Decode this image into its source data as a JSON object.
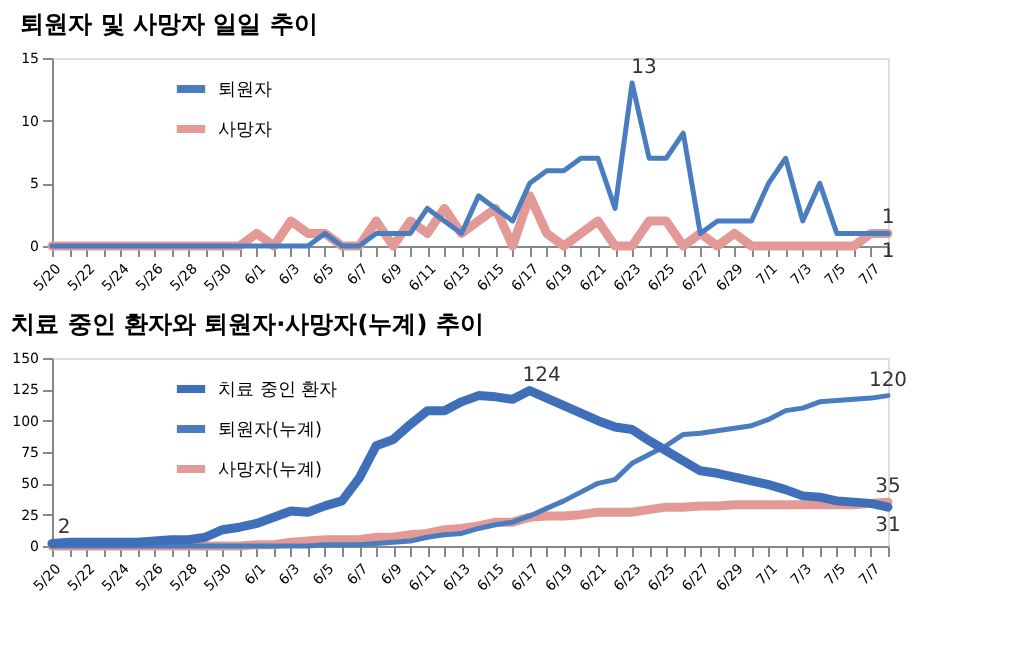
{
  "chart_data": [
    {
      "type": "line",
      "title": "퇴원자 및 사망자 일일 추이",
      "categories": [
        "5/20",
        null,
        "5/22",
        null,
        "5/24",
        null,
        "5/26",
        null,
        "5/28",
        null,
        "5/30",
        null,
        "6/1",
        null,
        "6/3",
        null,
        "6/5",
        null,
        "6/7",
        null,
        "6/9",
        null,
        "6/11",
        null,
        "6/13",
        null,
        "6/15",
        null,
        "6/17",
        null,
        "6/19",
        null,
        "6/21",
        null,
        "6/23",
        null,
        "6/25",
        null,
        "6/27",
        null,
        "6/29",
        null,
        "7/1",
        null,
        "7/3",
        null,
        "7/5",
        null,
        "7/7",
        null
      ],
      "series": [
        {
          "name": "퇴원자",
          "color": "#4a7cc0",
          "values": [
            0,
            0,
            0,
            0,
            0,
            0,
            0,
            0,
            0,
            0,
            0,
            0,
            0,
            0,
            0,
            0,
            1,
            0,
            0,
            1,
            1,
            1,
            3,
            2,
            1,
            4,
            3,
            2,
            5,
            6,
            6,
            7,
            7,
            3,
            13,
            7,
            7,
            9,
            1,
            2,
            2,
            2,
            5,
            7,
            2,
            5,
            1,
            1,
            1,
            1
          ]
        },
        {
          "name": "사망자",
          "color": "#e39a96",
          "values": [
            0,
            0,
            0,
            0,
            0,
            0,
            0,
            0,
            0,
            0,
            0,
            0,
            1,
            0,
            2,
            1,
            1,
            0,
            0,
            2,
            0,
            2,
            1,
            3,
            1,
            2,
            3,
            0,
            4,
            1,
            0,
            1,
            2,
            0,
            0,
            2,
            2,
            0,
            1,
            0,
            1,
            0,
            0,
            0,
            0,
            0,
            0,
            0,
            1,
            1
          ]
        }
      ],
      "ylim": [
        0,
        15
      ],
      "yticks": [
        0,
        5,
        10,
        15
      ],
      "grid": false,
      "legend": "top left",
      "line_style": "solid",
      "marker": "none",
      "annotations": [
        {
          "text": "13",
          "x": "6/23",
          "y": 13
        },
        {
          "text": "1",
          "y": 1
        },
        {
          "text": "1",
          "y": 1
        }
      ]
    },
    {
      "type": "line",
      "title": "치료 중인 환자와 퇴원자·사망자(누계) 추이",
      "categories": [
        "5/20",
        null,
        "5/22",
        null,
        "5/24",
        null,
        "5/26",
        null,
        "5/28",
        null,
        "5/30",
        null,
        "6/1",
        null,
        "6/3",
        null,
        "6/5",
        null,
        "6/7",
        null,
        "6/9",
        null,
        "6/11",
        null,
        "6/13",
        null,
        "6/15",
        null,
        "6/17",
        null,
        "6/19",
        null,
        "6/21",
        null,
        "6/23",
        null,
        "6/25",
        null,
        "6/27",
        null,
        "6/29",
        null,
        "7/1",
        null,
        "7/3",
        null,
        "7/5",
        null,
        "7/7",
        null
      ],
      "series": [
        {
          "name": "치료 중인 환자",
          "color": "#3f6fb8",
          "values": [
            2,
            3,
            3,
            3,
            3,
            3,
            4,
            5,
            5,
            7,
            13,
            15,
            18,
            23,
            28,
            27,
            32,
            36,
            54,
            80,
            85,
            97,
            108,
            108,
            115,
            120,
            119,
            117,
            124,
            118,
            112,
            106,
            100,
            95,
            93,
            84,
            76,
            68,
            60,
            58,
            55,
            52,
            49,
            45,
            40,
            39,
            36,
            35,
            34,
            31
          ]
        },
        {
          "name": "퇴원자(누계)",
          "color": "#4a7cc0",
          "values": [
            0,
            0,
            0,
            0,
            0,
            0,
            0,
            0,
            0,
            0,
            0,
            0,
            0,
            0,
            0,
            0,
            1,
            1,
            1,
            2,
            3,
            4,
            7,
            9,
            10,
            14,
            17,
            19,
            24,
            30,
            36,
            43,
            50,
            53,
            66,
            73,
            80,
            89,
            90,
            92,
            94,
            96,
            101,
            108,
            110,
            115,
            116,
            117,
            118,
            120
          ]
        },
        {
          "name": "사망자(누계)",
          "color": "#e39a96",
          "values": [
            0,
            0,
            0,
            0,
            0,
            0,
            0,
            0,
            0,
            0,
            0,
            0,
            1,
            1,
            3,
            4,
            5,
            5,
            5,
            7,
            7,
            9,
            10,
            13,
            14,
            16,
            19,
            19,
            23,
            24,
            24,
            25,
            27,
            27,
            27,
            29,
            31,
            31,
            32,
            32,
            33,
            33,
            33,
            33,
            33,
            33,
            33,
            33,
            34,
            35
          ]
        }
      ],
      "ylim": [
        0,
        150
      ],
      "yticks": [
        0,
        25,
        50,
        75,
        100,
        125,
        150
      ],
      "grid": false,
      "legend": "top left",
      "line_style": "solid",
      "marker": "none",
      "annotations": [
        {
          "text": "2",
          "x": "5/20",
          "y": 2
        },
        {
          "text": "124",
          "x": "6/17",
          "y": 124
        },
        {
          "text": "120",
          "y": 120
        },
        {
          "text": "35",
          "y": 35
        },
        {
          "text": "31",
          "y": 31
        }
      ]
    }
  ]
}
